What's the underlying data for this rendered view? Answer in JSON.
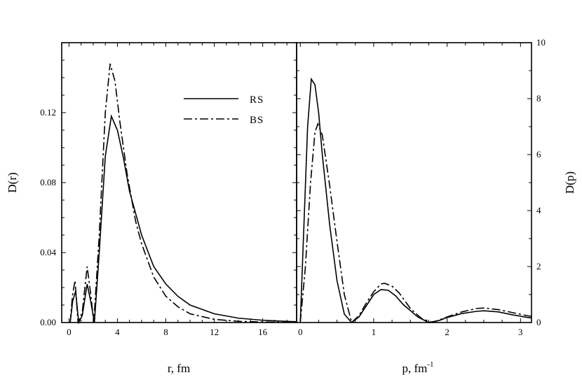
{
  "chart_data": [
    {
      "type": "line",
      "xlabel": "r, fm",
      "ylabel": "D(r)",
      "xlim": [
        -0.6,
        18.8
      ],
      "ylim": [
        0,
        0.16
      ],
      "xticks": [
        "0",
        "4",
        "8",
        "12",
        "16"
      ],
      "yticks": [
        "0.00",
        "0.04",
        "0.08",
        "0.12"
      ],
      "legend": {
        "position": "top-right",
        "entries": [
          "RS",
          "BS"
        ]
      },
      "series": [
        {
          "name": "RS",
          "style": "solid",
          "points": [
            [
              0.1,
              0.0
            ],
            [
              0.3,
              0.012
            ],
            [
              0.55,
              0.018
            ],
            [
              0.8,
              0.0
            ],
            [
              1.1,
              0.004
            ],
            [
              1.5,
              0.022
            ],
            [
              1.8,
              0.012
            ],
            [
              2.1,
              0.0
            ],
            [
              2.5,
              0.04
            ],
            [
              3.0,
              0.095
            ],
            [
              3.5,
              0.118
            ],
            [
              4.0,
              0.11
            ],
            [
              4.5,
              0.094
            ],
            [
              5.0,
              0.075
            ],
            [
              6.0,
              0.05
            ],
            [
              7.0,
              0.032
            ],
            [
              8.0,
              0.022
            ],
            [
              9.0,
              0.015
            ],
            [
              10.0,
              0.01
            ],
            [
              12.0,
              0.005
            ],
            [
              14.0,
              0.0025
            ],
            [
              16.0,
              0.0013
            ],
            [
              18.0,
              0.0007
            ],
            [
              18.8,
              0.0005
            ]
          ]
        },
        {
          "name": "BS",
          "style": "dash-dot",
          "points": [
            [
              0.1,
              0.0
            ],
            [
              0.3,
              0.016
            ],
            [
              0.5,
              0.024
            ],
            [
              0.75,
              0.0
            ],
            [
              1.1,
              0.006
            ],
            [
              1.5,
              0.032
            ],
            [
              1.8,
              0.016
            ],
            [
              2.05,
              0.0
            ],
            [
              2.5,
              0.05
            ],
            [
              3.0,
              0.12
            ],
            [
              3.4,
              0.148
            ],
            [
              3.8,
              0.138
            ],
            [
              4.2,
              0.115
            ],
            [
              4.8,
              0.085
            ],
            [
              5.5,
              0.058
            ],
            [
              6.0,
              0.045
            ],
            [
              7.0,
              0.026
            ],
            [
              8.0,
              0.015
            ],
            [
              9.0,
              0.009
            ],
            [
              10.0,
              0.005
            ],
            [
              12.0,
              0.0018
            ],
            [
              14.0,
              0.0007
            ],
            [
              16.0,
              0.0003
            ],
            [
              18.8,
              0.0001
            ]
          ]
        }
      ]
    },
    {
      "type": "line",
      "xlabel": "p, fm",
      "xlabel_superscript": "-1",
      "ylabel": "D(p)",
      "xlim": [
        -0.05,
        3.15
      ],
      "ylim": [
        0,
        10
      ],
      "xticks": [
        "0",
        "1",
        "2",
        "3"
      ],
      "yticks": [
        "0",
        "2",
        "4",
        "6",
        "8",
        "10"
      ],
      "series": [
        {
          "name": "RS",
          "style": "solid",
          "points": [
            [
              0.0,
              0.0
            ],
            [
              0.05,
              3.5
            ],
            [
              0.1,
              7.0
            ],
            [
              0.15,
              8.7
            ],
            [
              0.2,
              8.5
            ],
            [
              0.25,
              7.5
            ],
            [
              0.3,
              6.0
            ],
            [
              0.4,
              3.5
            ],
            [
              0.5,
              1.5
            ],
            [
              0.6,
              0.3
            ],
            [
              0.7,
              0.0
            ],
            [
              0.8,
              0.2
            ],
            [
              0.9,
              0.6
            ],
            [
              1.0,
              1.0
            ],
            [
              1.1,
              1.18
            ],
            [
              1.2,
              1.15
            ],
            [
              1.3,
              0.95
            ],
            [
              1.4,
              0.65
            ],
            [
              1.6,
              0.2
            ],
            [
              1.75,
              0.0
            ],
            [
              1.9,
              0.08
            ],
            [
              2.0,
              0.18
            ],
            [
              2.2,
              0.32
            ],
            [
              2.4,
              0.4
            ],
            [
              2.5,
              0.42
            ],
            [
              2.7,
              0.38
            ],
            [
              2.9,
              0.27
            ],
            [
              3.1,
              0.18
            ],
            [
              3.15,
              0.16
            ]
          ]
        },
        {
          "name": "BS",
          "style": "dash-dot",
          "points": [
            [
              0.0,
              0.0
            ],
            [
              0.07,
              2.0
            ],
            [
              0.14,
              5.0
            ],
            [
              0.2,
              6.8
            ],
            [
              0.24,
              7.1
            ],
            [
              0.3,
              6.7
            ],
            [
              0.4,
              4.9
            ],
            [
              0.5,
              2.9
            ],
            [
              0.6,
              1.0
            ],
            [
              0.7,
              0.0
            ],
            [
              0.8,
              0.25
            ],
            [
              0.9,
              0.7
            ],
            [
              1.0,
              1.1
            ],
            [
              1.1,
              1.38
            ],
            [
              1.15,
              1.4
            ],
            [
              1.25,
              1.3
            ],
            [
              1.35,
              1.05
            ],
            [
              1.5,
              0.5
            ],
            [
              1.65,
              0.15
            ],
            [
              1.8,
              0.0
            ],
            [
              1.9,
              0.1
            ],
            [
              2.0,
              0.2
            ],
            [
              2.2,
              0.38
            ],
            [
              2.4,
              0.5
            ],
            [
              2.5,
              0.52
            ],
            [
              2.7,
              0.46
            ],
            [
              2.9,
              0.35
            ],
            [
              3.1,
              0.24
            ],
            [
              3.15,
              0.22
            ]
          ]
        }
      ]
    }
  ]
}
